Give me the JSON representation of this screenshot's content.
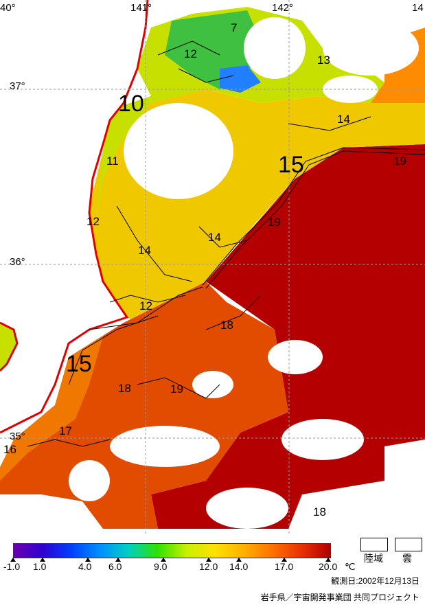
{
  "coords": {
    "lon_140": "40°",
    "lon_141": "141°",
    "lon_142": "142°",
    "lon_143": "14",
    "lat_37": "37°",
    "lat_36": "36°",
    "lat_35": "35°"
  },
  "isotherms": {
    "t7": "7",
    "t12a": "12",
    "t13": "13",
    "t10": "10",
    "t14a": "14",
    "t15a": "15",
    "t19a": "19",
    "t11": "11",
    "t12b": "12",
    "t19b": "19",
    "t14b": "14",
    "t14c": "14",
    "t12c": "12",
    "t18a": "18",
    "t15b": "15",
    "t18b": "18",
    "t19c": "19",
    "t17": "17",
    "t16": "16",
    "t18c": "18"
  },
  "colorbar": {
    "ticks": [
      "-1.0",
      "1.0",
      "4.0",
      "6.0",
      "9.0",
      "12.0",
      "14.0",
      "17.0",
      "20.0"
    ],
    "unit": "℃",
    "colors": [
      "#6a00b0",
      "#3000d0",
      "#0040ff",
      "#0090ff",
      "#00d0c0",
      "#30e000",
      "#c8f000",
      "#ffe000",
      "#ffb000",
      "#ff7000",
      "#e83000",
      "#b00000"
    ]
  },
  "legend": {
    "land": "陸域",
    "cloud": "雲"
  },
  "footer": {
    "date": "観測日:2002年12月13日",
    "credit": "岩手県／宇宙開発事業団 共同プロジェクト"
  }
}
